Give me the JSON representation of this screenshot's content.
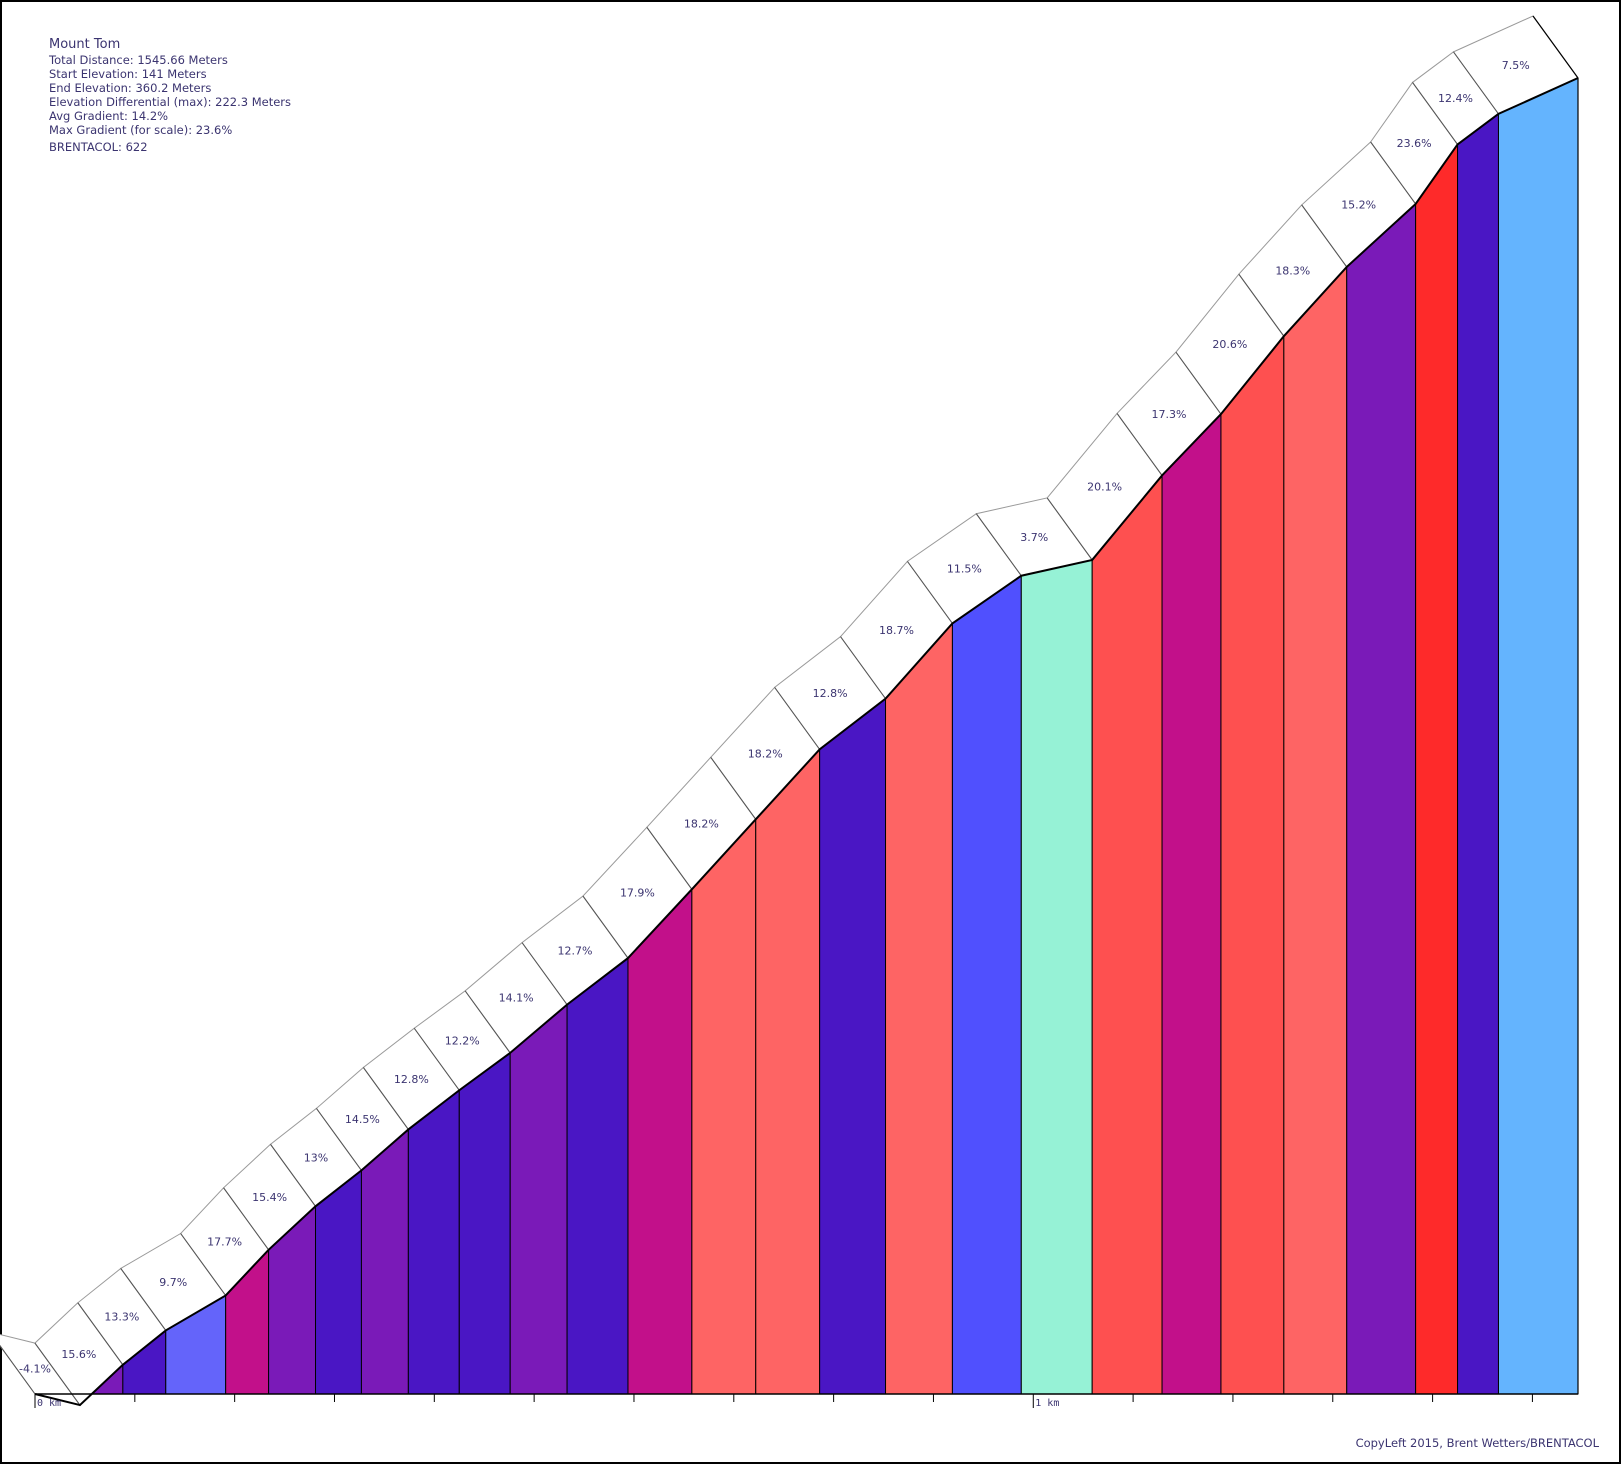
{
  "info": {
    "title": "Mount Tom",
    "total_distance": "Total Distance: 1545.66 Meters",
    "start_elevation": "Start Elevation: 141 Meters",
    "end_elevation": "End Elevation: 360.2 Meters",
    "elevation_differential": "Elevation Differential (max): 222.3 Meters",
    "avg_gradient": "Avg Gradient: 14.2%",
    "max_gradient": "Max Gradient (for scale): 23.6%",
    "brentacol": "BRENTACOL: 622"
  },
  "copyleft": "CopyLeft 2015, Brent Wetters/BRENTACOL",
  "chart_data": {
    "type": "area",
    "title": "Mount Tom",
    "xlabel": "",
    "ylabel": "",
    "x_unit": "km",
    "x_tick_labels": [
      "0 km",
      "1 km"
    ],
    "x_range_m": [
      0,
      1545.66
    ],
    "elevation_range_m": [
      141,
      360.2
    ],
    "segments": [
      {
        "start_m": 0,
        "end_m": 45,
        "gradient": "-4.1%",
        "color": "#ffffff"
      },
      {
        "start_m": 45,
        "end_m": 88,
        "gradient": "15.6%",
        "color": "#7a1ab8"
      },
      {
        "start_m": 88,
        "end_m": 131,
        "gradient": "13.3%",
        "color": "#4a16c4"
      },
      {
        "start_m": 131,
        "end_m": 191,
        "gradient": "9.7%",
        "color": "#6464fa"
      },
      {
        "start_m": 191,
        "end_m": 234,
        "gradient": "17.7%",
        "color": "#c2108a"
      },
      {
        "start_m": 234,
        "end_m": 281,
        "gradient": "15.4%",
        "color": "#7a1ab8"
      },
      {
        "start_m": 281,
        "end_m": 327,
        "gradient": "13%",
        "color": "#4a16c4"
      },
      {
        "start_m": 327,
        "end_m": 374,
        "gradient": "14.5%",
        "color": "#7a1ab8"
      },
      {
        "start_m": 374,
        "end_m": 425,
        "gradient": "12.8%",
        "color": "#4a16c4"
      },
      {
        "start_m": 425,
        "end_m": 476,
        "gradient": "12.2%",
        "color": "#4a16c4"
      },
      {
        "start_m": 476,
        "end_m": 533,
        "gradient": "14.1%",
        "color": "#7a1ab8"
      },
      {
        "start_m": 533,
        "end_m": 594,
        "gradient": "12.7%",
        "color": "#4a16c4"
      },
      {
        "start_m": 594,
        "end_m": 658,
        "gradient": "17.9%",
        "color": "#c2108a"
      },
      {
        "start_m": 658,
        "end_m": 722,
        "gradient": "18.2%",
        "color": "#fe6464"
      },
      {
        "start_m": 722,
        "end_m": 786,
        "gradient": "18.2%",
        "color": "#fe6464"
      },
      {
        "start_m": 786,
        "end_m": 852,
        "gradient": "12.8%",
        "color": "#4a16c4"
      },
      {
        "start_m": 852,
        "end_m": 919,
        "gradient": "18.7%",
        "color": "#fe6464"
      },
      {
        "start_m": 919,
        "end_m": 988,
        "gradient": "11.5%",
        "color": "#5050fe"
      },
      {
        "start_m": 988,
        "end_m": 1059,
        "gradient": "3.7%",
        "color": "#96f2d6"
      },
      {
        "start_m": 1059,
        "end_m": 1129,
        "gradient": "20.1%",
        "color": "#fe5050"
      },
      {
        "start_m": 1129,
        "end_m": 1188,
        "gradient": "17.3%",
        "color": "#c2108a"
      },
      {
        "start_m": 1188,
        "end_m": 1251,
        "gradient": "20.6%",
        "color": "#fe5050"
      },
      {
        "start_m": 1251,
        "end_m": 1314,
        "gradient": "18.3%",
        "color": "#fe6464"
      },
      {
        "start_m": 1314,
        "end_m": 1383,
        "gradient": "15.2%",
        "color": "#7a1ab8"
      },
      {
        "start_m": 1383,
        "end_m": 1425,
        "gradient": "23.6%",
        "color": "#fe2a2a"
      },
      {
        "start_m": 1425,
        "end_m": 1466,
        "gradient": "12.4%",
        "color": "#4a16c4"
      },
      {
        "start_m": 1466,
        "end_m": 1545.66,
        "gradient": "7.5%",
        "color": "#64b4fe"
      }
    ]
  }
}
